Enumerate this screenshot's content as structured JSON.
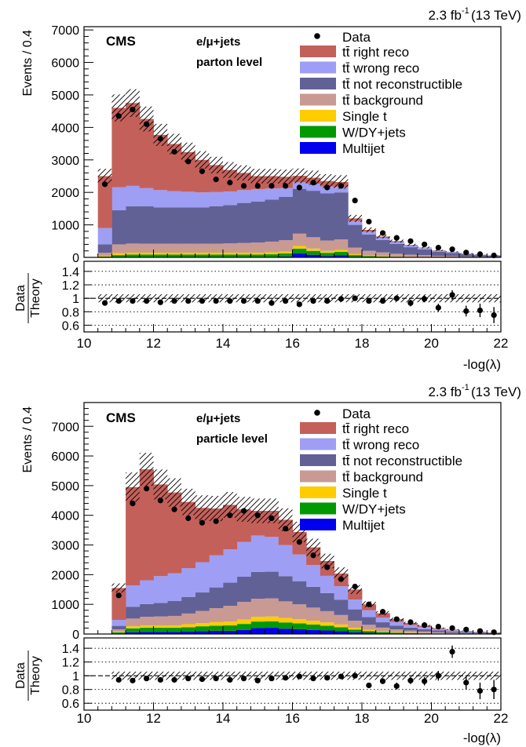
{
  "colors": {
    "right_reco": "#c4605a",
    "wrong_reco": "#9e9ef5",
    "not_reconstructible": "#616196",
    "background": "#c99a94",
    "single_t": "#ffcc00",
    "w_dy_jets": "#009900",
    "multijet": "#0000ee",
    "data": "#000000"
  },
  "chart_data": [
    {
      "type": "bar",
      "stacked": true,
      "luminosity": "2.3 fb",
      "lumi_exponent": "-1",
      "energy": "(13 TeV)",
      "cms_label": "CMS",
      "channel": "e/μ+jets",
      "level": "parton level",
      "xlabel": "-log(λ)",
      "ylabel": "Events / 0.4",
      "ratio_label_top": "Data",
      "ratio_label_bottom": "Theory",
      "xlim": [
        10,
        22
      ],
      "ylim": [
        0,
        7100
      ],
      "ratio_ylim": [
        0.5,
        1.55
      ],
      "xticks": [
        "10",
        "12",
        "14",
        "16",
        "18",
        "20",
        "22"
      ],
      "yticks": [
        "0",
        "1000",
        "2000",
        "3000",
        "4000",
        "5000",
        "6000",
        "7000"
      ],
      "ratio_yticks": [
        "0.6",
        "0.8",
        "1",
        "1.2",
        "1.4"
      ],
      "legend_position": "top-right",
      "bin_edges": [
        10.4,
        10.8,
        11.2,
        11.6,
        12.0,
        12.4,
        12.8,
        13.2,
        13.6,
        14.0,
        14.4,
        14.8,
        15.2,
        15.6,
        16.0,
        16.4,
        16.8,
        17.2,
        17.6,
        18.0,
        18.4,
        18.8,
        19.2,
        19.6,
        20.0,
        20.4,
        20.8,
        21.2,
        21.6,
        22.0
      ],
      "series": [
        {
          "name": "Multijet",
          "color_key": "multijet",
          "values": [
            5,
            10,
            15,
            15,
            15,
            15,
            15,
            15,
            15,
            15,
            15,
            15,
            15,
            30,
            120,
            80,
            40,
            60,
            20,
            10,
            8,
            6,
            4,
            3,
            2,
            2,
            1,
            1,
            1
          ]
        },
        {
          "name": "W/DY+jets",
          "color_key": "w_dy_jets",
          "values": [
            20,
            60,
            70,
            70,
            70,
            70,
            70,
            70,
            70,
            70,
            70,
            70,
            80,
            90,
            150,
            120,
            100,
            110,
            50,
            30,
            20,
            15,
            10,
            8,
            5,
            4,
            3,
            2,
            2
          ]
        },
        {
          "name": "Single t",
          "color_key": "single_t",
          "values": [
            20,
            60,
            60,
            60,
            60,
            60,
            60,
            60,
            60,
            60,
            60,
            60,
            60,
            60,
            80,
            70,
            60,
            60,
            30,
            20,
            15,
            10,
            8,
            6,
            4,
            3,
            2,
            2,
            1
          ]
        },
        {
          "name": "tt̄ background",
          "color_key": "background",
          "values": [
            95,
            270,
            280,
            275,
            275,
            275,
            275,
            275,
            275,
            285,
            300,
            310,
            330,
            350,
            380,
            350,
            320,
            320,
            200,
            140,
            110,
            80,
            60,
            50,
            35,
            30,
            20,
            15,
            10
          ]
        },
        {
          "name": "tt̄ not reconstructible",
          "color_key": "not_reconstructible",
          "values": [
            260,
            1050,
            1150,
            1150,
            1120,
            1120,
            1120,
            1120,
            1150,
            1180,
            1230,
            1260,
            1290,
            1330,
            1380,
            1430,
            1450,
            1450,
            700,
            500,
            380,
            300,
            230,
            180,
            130,
            100,
            70,
            50,
            40
          ]
        },
        {
          "name": "tt̄ wrong reco",
          "color_key": "wrong_reco",
          "values": [
            500,
            710,
            625,
            560,
            530,
            500,
            480,
            460,
            440,
            420,
            395,
            385,
            345,
            270,
            200,
            220,
            210,
            170,
            120,
            90,
            70,
            60,
            50,
            40,
            30,
            25,
            20,
            15,
            10
          ]
        },
        {
          "name": "tt̄ right reco",
          "color_key": "right_reco",
          "values": [
            1600,
            2440,
            2550,
            2130,
            1700,
            1450,
            1220,
            1000,
            830,
            660,
            530,
            400,
            380,
            350,
            200,
            180,
            170,
            150,
            80,
            55,
            40,
            30,
            20,
            15,
            10,
            8,
            5,
            3,
            2
          ]
        }
      ],
      "data_series": {
        "name": "Data",
        "values": [
          2250,
          4350,
          4550,
          4100,
          3650,
          3250,
          2950,
          2650,
          2400,
          2300,
          2200,
          2200,
          2200,
          2200,
          2150,
          2300,
          2150,
          2200,
          1750,
          1100,
          750,
          600,
          500,
          400,
          300,
          250,
          150,
          100,
          60
        ],
        "errors": [
          50,
          65,
          70,
          65,
          60,
          57,
          55,
          52,
          50,
          48,
          47,
          47,
          47,
          47,
          47,
          48,
          47,
          47,
          42,
          35,
          28,
          25,
          22,
          20,
          17,
          15,
          12,
          10,
          8
        ]
      },
      "ratio": {
        "values": [
          0.93,
          0.96,
          0.96,
          0.96,
          0.94,
          0.96,
          0.96,
          0.96,
          0.96,
          0.96,
          0.96,
          0.96,
          0.93,
          0.96,
          0.91,
          0.96,
          0.96,
          0.99,
          1.0,
          0.96,
          0.96,
          1.0,
          0.93,
          0.99,
          0.86,
          1.05,
          0.81,
          0.82,
          0.75
        ],
        "errors": [
          0.02,
          0.02,
          0.02,
          0.02,
          0.02,
          0.02,
          0.02,
          0.02,
          0.02,
          0.02,
          0.02,
          0.02,
          0.02,
          0.02,
          0.02,
          0.02,
          0.02,
          0.02,
          0.03,
          0.03,
          0.04,
          0.04,
          0.05,
          0.05,
          0.06,
          0.07,
          0.08,
          0.1,
          0.12
        ],
        "band": 0.06
      },
      "uncertainty_frac": 0.09
    },
    {
      "type": "bar",
      "stacked": true,
      "luminosity": "2.3 fb",
      "lumi_exponent": "-1",
      "energy": "(13 TeV)",
      "cms_label": "CMS",
      "channel": "e/μ+jets",
      "level": "particle level",
      "xlabel": "-log(λ)",
      "ylabel": "Events / 0.4",
      "ratio_label_top": "Data",
      "ratio_label_bottom": "Theory",
      "xlim": [
        10,
        22
      ],
      "ylim": [
        0,
        7800
      ],
      "ratio_ylim": [
        0.5,
        1.55
      ],
      "xticks": [
        "10",
        "12",
        "14",
        "16",
        "18",
        "20",
        "22"
      ],
      "yticks": [
        "0",
        "1000",
        "2000",
        "3000",
        "4000",
        "5000",
        "6000",
        "7000"
      ],
      "ratio_yticks": [
        "0.6",
        "0.8",
        "1",
        "1.2",
        "1.4"
      ],
      "legend_position": "top-right",
      "bin_edges": [
        10.8,
        11.2,
        11.6,
        12.0,
        12.4,
        12.8,
        13.2,
        13.6,
        14.0,
        14.4,
        14.8,
        15.2,
        15.6,
        16.0,
        16.4,
        16.8,
        17.2,
        17.6,
        18.0,
        18.4,
        18.8,
        19.2,
        19.6,
        20.0,
        20.4,
        20.8,
        21.2,
        21.6,
        22.0
      ],
      "series": [
        {
          "name": "Multijet",
          "color_key": "multijet",
          "values": [
            15,
            60,
            70,
            70,
            70,
            80,
            100,
            110,
            110,
            140,
            200,
            210,
            180,
            160,
            140,
            120,
            100,
            60,
            40,
            25,
            15,
            10,
            8,
            6,
            4,
            3,
            2,
            1
          ]
        },
        {
          "name": "W/DY+jets",
          "color_key": "w_dy_jets",
          "values": [
            40,
            130,
            140,
            140,
            140,
            150,
            160,
            170,
            180,
            200,
            220,
            220,
            210,
            200,
            180,
            160,
            130,
            90,
            60,
            40,
            30,
            20,
            15,
            10,
            8,
            5,
            3,
            2
          ]
        },
        {
          "name": "Single t",
          "color_key": "single_t",
          "values": [
            20,
            70,
            80,
            80,
            80,
            100,
            110,
            120,
            130,
            150,
            160,
            160,
            150,
            140,
            130,
            110,
            90,
            60,
            40,
            30,
            20,
            15,
            10,
            8,
            5,
            3,
            2,
            1
          ]
        },
        {
          "name": "tt̄ background",
          "color_key": "background",
          "values": [
            80,
            260,
            290,
            300,
            320,
            360,
            410,
            470,
            530,
            590,
            610,
            610,
            560,
            500,
            440,
            380,
            320,
            240,
            170,
            120,
            90,
            70,
            50,
            35,
            25,
            18,
            12,
            8
          ]
        },
        {
          "name": "tt̄ not reconstructible",
          "color_key": "not_reconstructible",
          "values": [
            120,
            400,
            430,
            460,
            500,
            560,
            620,
            700,
            780,
            850,
            900,
            900,
            850,
            780,
            700,
            610,
            510,
            380,
            260,
            180,
            130,
            100,
            80,
            60,
            45,
            32,
            22,
            15
          ]
        },
        {
          "name": "tt̄ wrong reco",
          "color_key": "wrong_reco",
          "values": [
            200,
            720,
            800,
            900,
            940,
            970,
            1020,
            1080,
            1120,
            1170,
            1230,
            1170,
            1050,
            900,
            730,
            580,
            460,
            330,
            230,
            160,
            120,
            90,
            70,
            50,
            38,
            28,
            20,
            14
          ]
        },
        {
          "name": "tt̄ right reco",
          "color_key": "right_reco",
          "values": [
            1075,
            3310,
            3740,
            3090,
            2720,
            2230,
            1830,
            1580,
            1500,
            1100,
            830,
            880,
            850,
            760,
            600,
            500,
            430,
            340,
            200,
            145,
            95,
            65,
            47,
            31,
            25,
            16,
            14,
            10
          ]
        }
      ],
      "data_series": {
        "name": "Data",
        "values": [
          1300,
          4400,
          4900,
          4500,
          4200,
          3900,
          3750,
          3800,
          4000,
          4150,
          4000,
          3900,
          3550,
          3100,
          2650,
          2250,
          1850,
          1600,
          1000,
          750,
          500,
          400,
          300,
          250,
          200,
          150,
          100,
          60
        ],
        "errors": [
          36,
          66,
          70,
          67,
          65,
          62,
          61,
          62,
          63,
          64,
          63,
          62,
          60,
          56,
          52,
          48,
          43,
          40,
          32,
          27,
          22,
          20,
          17,
          16,
          14,
          12,
          10,
          8
        ]
      },
      "ratio": {
        "values": [
          0.94,
          0.93,
          0.96,
          0.94,
          0.94,
          0.96,
          0.95,
          0.96,
          0.94,
          0.96,
          0.93,
          0.96,
          0.97,
          0.99,
          0.96,
          0.97,
          0.99,
          1.0,
          0.86,
          0.92,
          0.85,
          0.93,
          0.92,
          1.0,
          1.35,
          0.9,
          0.78,
          0.8
        ],
        "errors": [
          0.02,
          0.02,
          0.02,
          0.02,
          0.02,
          0.02,
          0.02,
          0.02,
          0.02,
          0.02,
          0.02,
          0.02,
          0.02,
          0.02,
          0.02,
          0.02,
          0.03,
          0.03,
          0.03,
          0.04,
          0.05,
          0.05,
          0.06,
          0.07,
          0.09,
          0.1,
          0.12,
          0.14
        ],
        "band": 0.06
      },
      "uncertainty_frac": 0.1
    }
  ]
}
